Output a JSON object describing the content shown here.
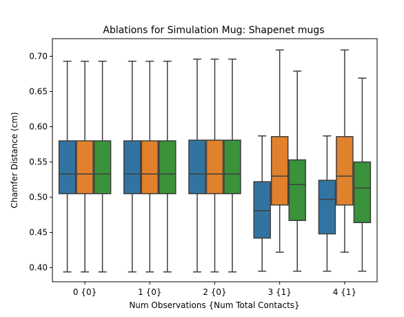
{
  "chart_data": {
    "type": "box",
    "title": "Ablations for Simulation Mug: Shapenet mugs",
    "xlabel": "Num Observations {Num Total Contacts}",
    "ylabel": "Chamfer Distance (cm)",
    "ylim": [
      0.38,
      0.725
    ],
    "yticks": [
      "0.40",
      "0.45",
      "0.50",
      "0.55",
      "0.60",
      "0.65",
      "0.70"
    ],
    "categories": [
      "0 {0}",
      "1 {0}",
      "2 {0}",
      "3 {1}",
      "4 {1}"
    ],
    "grid": false,
    "legend": null,
    "series": [
      {
        "color": "#3274a1",
        "boxes": [
          {
            "whislo": 0.394,
            "q1": 0.505,
            "med": 0.533,
            "q3": 0.58,
            "whishi": 0.693
          },
          {
            "whislo": 0.394,
            "q1": 0.505,
            "med": 0.533,
            "q3": 0.58,
            "whishi": 0.693
          },
          {
            "whislo": 0.394,
            "q1": 0.505,
            "med": 0.533,
            "q3": 0.581,
            "whishi": 0.696
          },
          {
            "whislo": 0.395,
            "q1": 0.442,
            "med": 0.481,
            "q3": 0.522,
            "whishi": 0.587
          },
          {
            "whislo": 0.395,
            "q1": 0.448,
            "med": 0.497,
            "q3": 0.524,
            "whishi": 0.587
          }
        ]
      },
      {
        "color": "#e1812c",
        "boxes": [
          {
            "whislo": 0.394,
            "q1": 0.505,
            "med": 0.533,
            "q3": 0.58,
            "whishi": 0.693
          },
          {
            "whislo": 0.394,
            "q1": 0.505,
            "med": 0.533,
            "q3": 0.58,
            "whishi": 0.693
          },
          {
            "whislo": 0.394,
            "q1": 0.505,
            "med": 0.533,
            "q3": 0.581,
            "whishi": 0.696
          },
          {
            "whislo": 0.422,
            "q1": 0.489,
            "med": 0.53,
            "q3": 0.586,
            "whishi": 0.709
          },
          {
            "whislo": 0.422,
            "q1": 0.489,
            "med": 0.53,
            "q3": 0.586,
            "whishi": 0.709
          }
        ]
      },
      {
        "color": "#3a923a",
        "boxes": [
          {
            "whislo": 0.394,
            "q1": 0.505,
            "med": 0.533,
            "q3": 0.58,
            "whishi": 0.693
          },
          {
            "whislo": 0.394,
            "q1": 0.505,
            "med": 0.533,
            "q3": 0.58,
            "whishi": 0.693
          },
          {
            "whislo": 0.394,
            "q1": 0.505,
            "med": 0.533,
            "q3": 0.581,
            "whishi": 0.696
          },
          {
            "whislo": 0.395,
            "q1": 0.467,
            "med": 0.518,
            "q3": 0.553,
            "whishi": 0.679
          },
          {
            "whislo": 0.395,
            "q1": 0.464,
            "med": 0.513,
            "q3": 0.55,
            "whishi": 0.669
          }
        ]
      }
    ]
  }
}
